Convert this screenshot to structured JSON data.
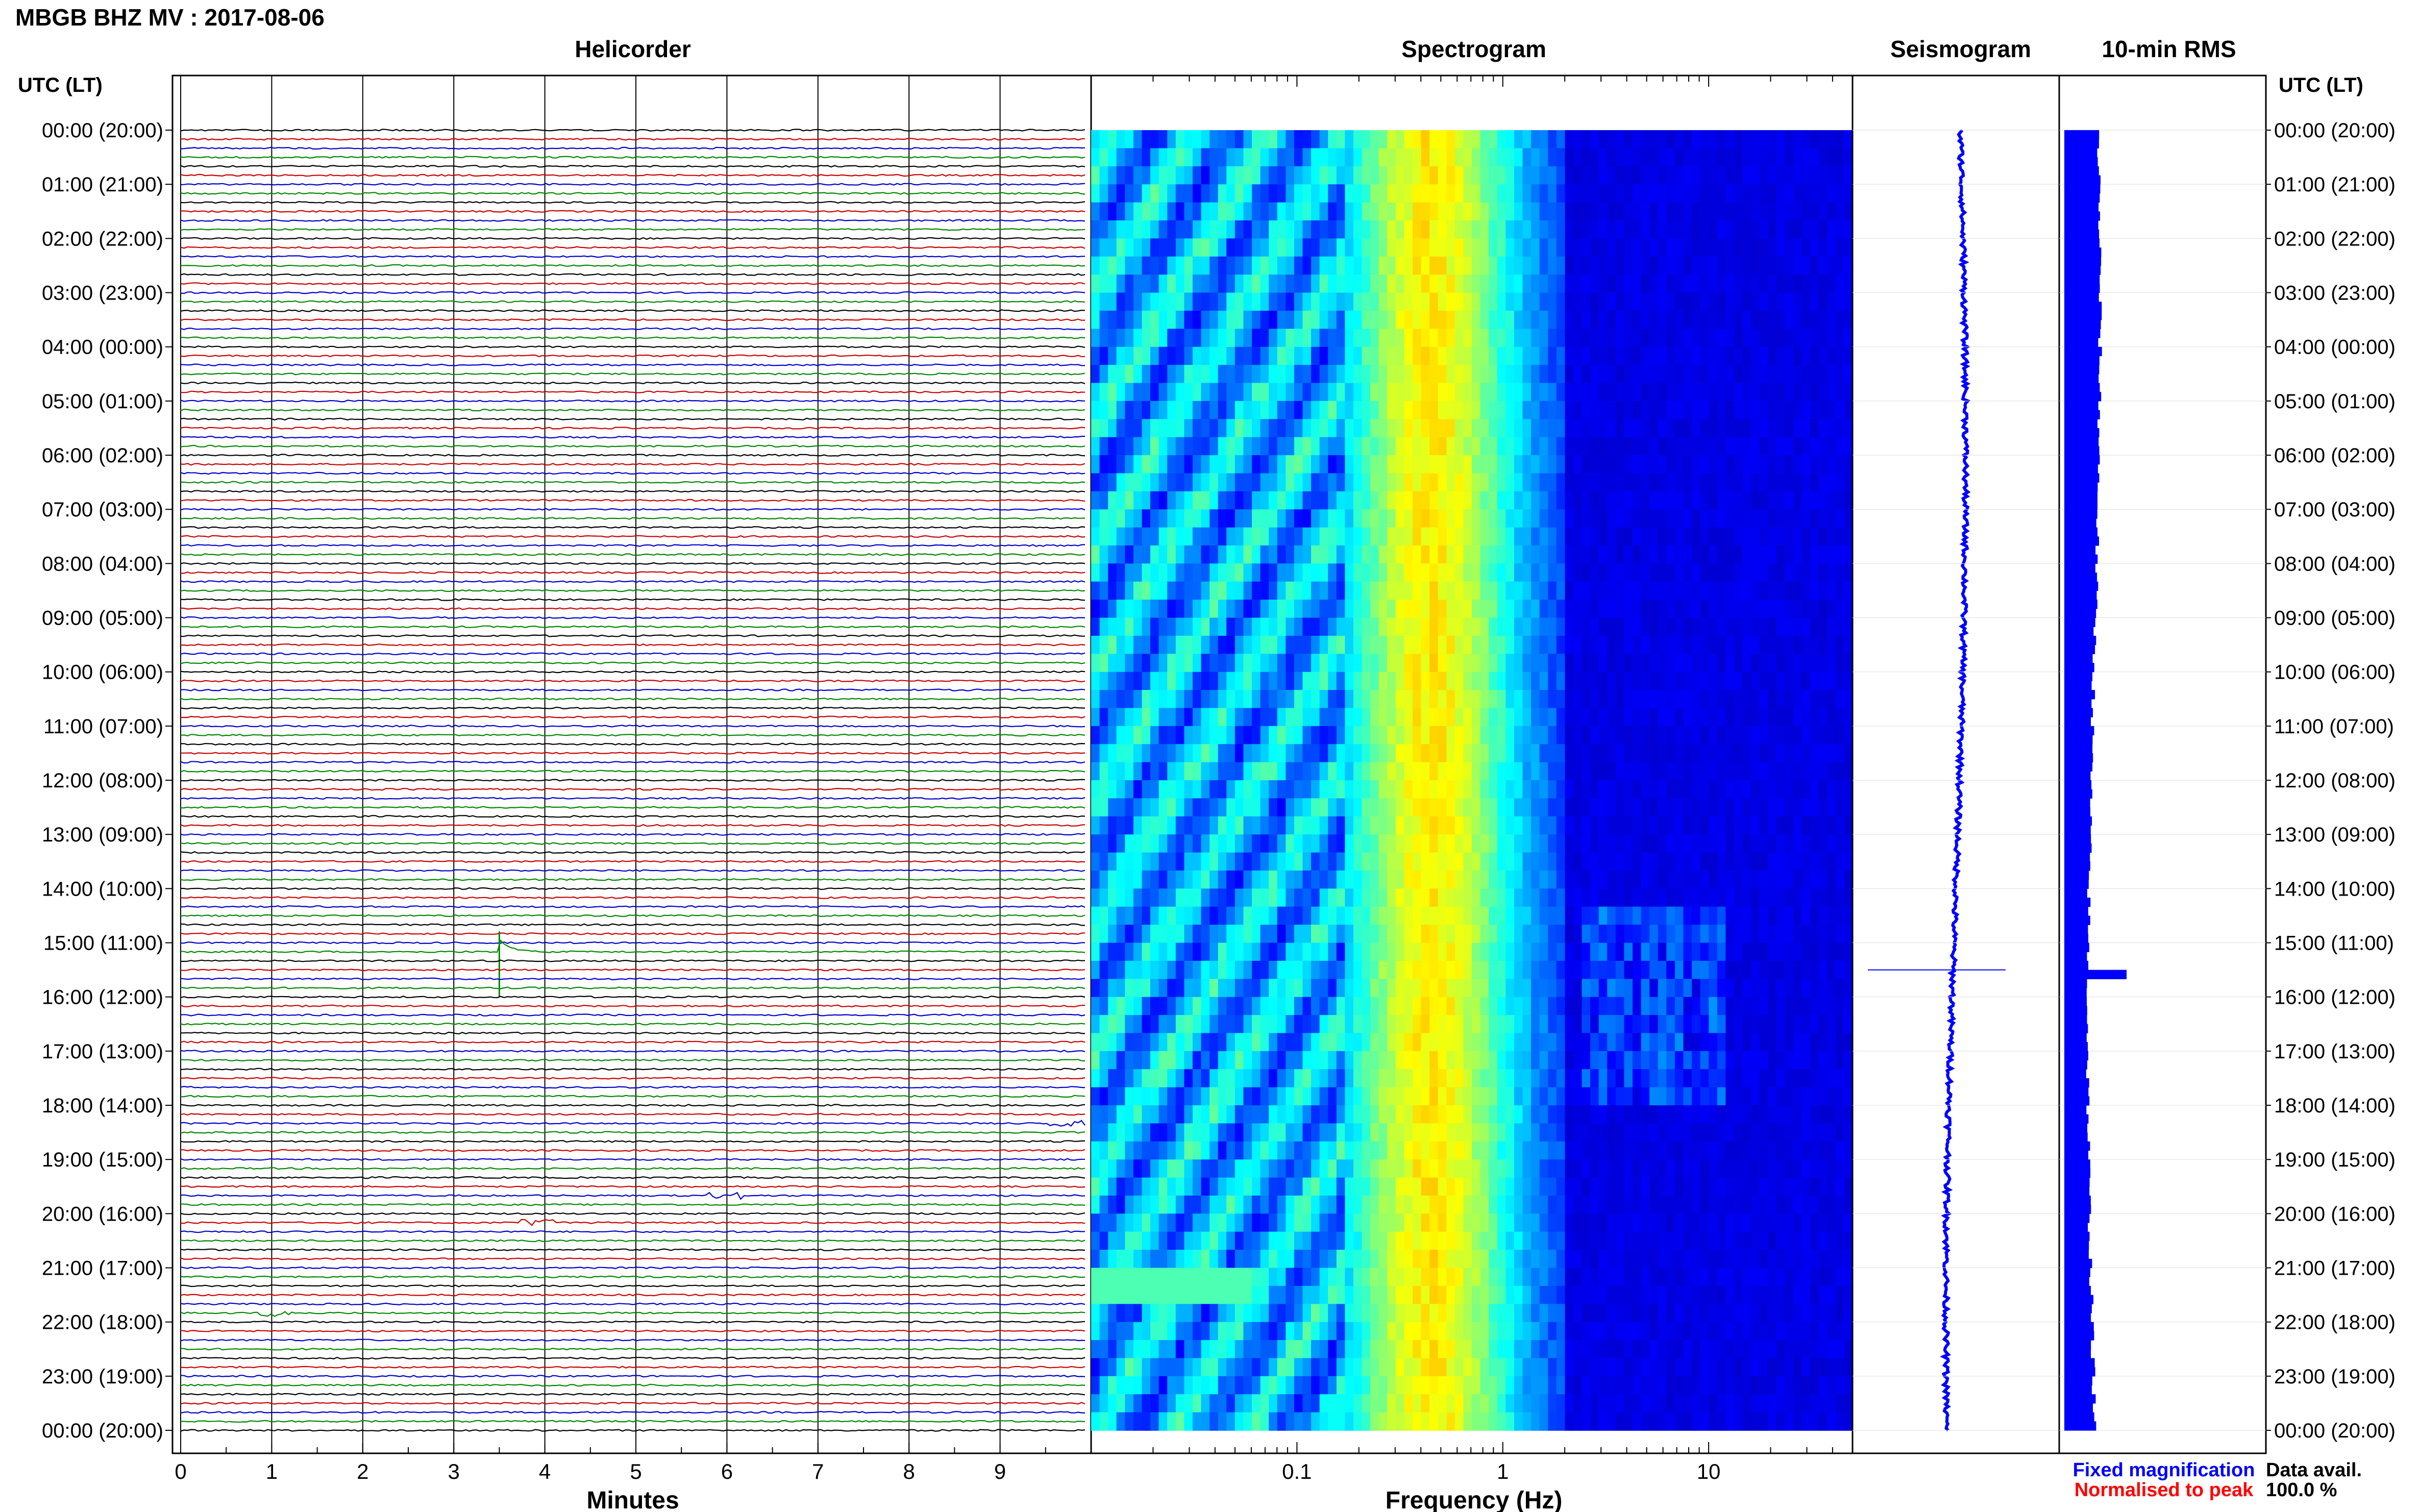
{
  "page": {
    "title": "MBGB BHZ MV : 2017-08-06",
    "panel_titles": {
      "helicorder": "Helicorder",
      "spectrogram": "Spectrogram",
      "seismogram": "Seismogram",
      "rms": "10-min RMS"
    },
    "time_axis_header_left": "UTC (LT)",
    "time_axis_header_right": "UTC (LT)",
    "legend": {
      "fixed": "Fixed magnification",
      "normalised": "Normalised to peak"
    },
    "data_avail_label": "Data avail.",
    "data_avail_value": "100.0 %"
  },
  "colors": {
    "trace_cycle": [
      "#000000",
      "#cc0000",
      "#0000cc",
      "#008800"
    ],
    "spectro_high": "#00008b",
    "seismo": "#0000ff",
    "rms": "#0000ff",
    "legend_fixed": "#0000ff",
    "legend_normalised": "#ff0000"
  },
  "chart_data": [
    {
      "type": "line",
      "title": "Helicorder",
      "xlabel": "Minutes",
      "ylabel": "UTC (LT)",
      "x_ticks": [
        "0",
        "1",
        "2",
        "3",
        "4",
        "5",
        "6",
        "7",
        "8",
        "9"
      ],
      "xlim": [
        0,
        10
      ],
      "rows_per_hour": 6,
      "row_count": 144,
      "time_labels": [
        "00:00 (20:00)",
        "01:00 (21:00)",
        "02:00 (22:00)",
        "03:00 (23:00)",
        "04:00 (00:00)",
        "05:00 (01:00)",
        "06:00 (02:00)",
        "07:00 (03:00)",
        "08:00 (04:00)",
        "09:00 (05:00)",
        "10:00 (06:00)",
        "11:00 (07:00)",
        "12:00 (08:00)",
        "13:00 (09:00)",
        "14:00 (10:00)",
        "15:00 (11:00)",
        "16:00 (12:00)",
        "17:00 (13:00)",
        "18:00 (14:00)",
        "19:00 (15:00)",
        "20:00 (16:00)",
        "21:00 (17:00)",
        "22:00 (18:00)",
        "23:00 (19:00)",
        "00:00 (20:00)"
      ],
      "events": [
        {
          "row": 91,
          "minute": 3.5,
          "amplitude": 4
        },
        {
          "row": 110,
          "minute": 9.75,
          "amplitude": 1
        },
        {
          "row": 118,
          "minute": 6.0,
          "amplitude": 1
        },
        {
          "row": 121,
          "minute": 3.9,
          "amplitude": 1
        },
        {
          "row": 131,
          "minute": 1.1,
          "amplitude": 1
        }
      ]
    },
    {
      "type": "heatmap",
      "title": "Spectrogram",
      "xlabel": "Frequency (Hz)",
      "x_scale": "log",
      "x_ticks": [
        "0.1",
        "1",
        "10"
      ],
      "xlim": [
        0.01,
        50
      ],
      "peak_band_hz": [
        0.2,
        0.8
      ]
    },
    {
      "type": "line",
      "title": "Seismogram",
      "note_peak_hour": 15.5
    },
    {
      "type": "bar",
      "title": "10-min RMS",
      "peak_hour": 15.5
    }
  ]
}
